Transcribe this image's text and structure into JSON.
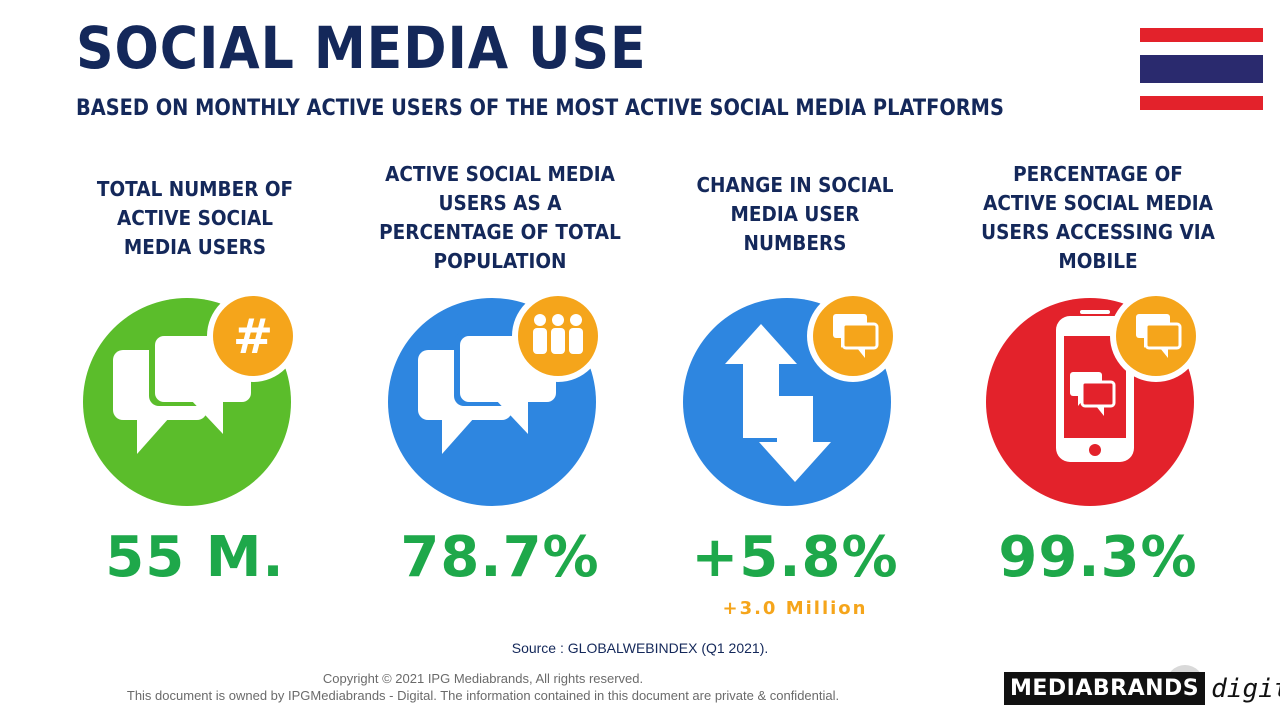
{
  "header": {
    "title": "SOCIAL MEDIA USE",
    "subtitle": "BASED ON MONTHLY ACTIVE USERS OF THE MOST ACTIVE SOCIAL MEDIA PLATFORMS"
  },
  "flag": {
    "name": "thailand-flag",
    "colors": {
      "red": "#e3222b",
      "white": "#ffffff",
      "blue": "#2a2a6e"
    }
  },
  "stats": [
    {
      "heading": "TOTAL NUMBER OF ACTIVE SOCIAL  MEDIA USERS",
      "value": "55 M.",
      "icon": "speech-bubbles-hashtag-icon",
      "color": "#5bbd2b"
    },
    {
      "heading": "ACTIVE SOCIAL MEDIA USERS AS A PERCENTAGE OF TOTAL POPULATION",
      "value": "78.7%",
      "icon": "speech-bubbles-people-icon",
      "color": "#2e86e0"
    },
    {
      "heading": "CHANGE IN SOCIAL MEDIA USER NUMBERS",
      "value": "+5.8%",
      "sub_value": "+3.0 Million",
      "icon": "up-down-arrows-icon",
      "color": "#2e86e0"
    },
    {
      "heading": "PERCENTAGE OF ACTIVE SOCIAL MEDIA USERS ACCESSING VIA MOBILE",
      "value": "99.3%",
      "icon": "mobile-phone-chat-icon",
      "color": "#e3222b"
    }
  ],
  "colors": {
    "navy": "#14285a",
    "value_green": "#1ea84a",
    "badge_orange": "#f5a51b"
  },
  "footer": {
    "source": "Source :  GLOBALWEBINDEX (Q1 2021).",
    "copyright_line1": "Copyright © 2021 IPG Mediabrands, All rights reserved.",
    "copyright_line2": "This document is owned by IPGMediabrands - Digital. The information contained in this document are private & confidential.",
    "brand_main": "MEDIABRANDS",
    "brand_sub": "digital"
  }
}
